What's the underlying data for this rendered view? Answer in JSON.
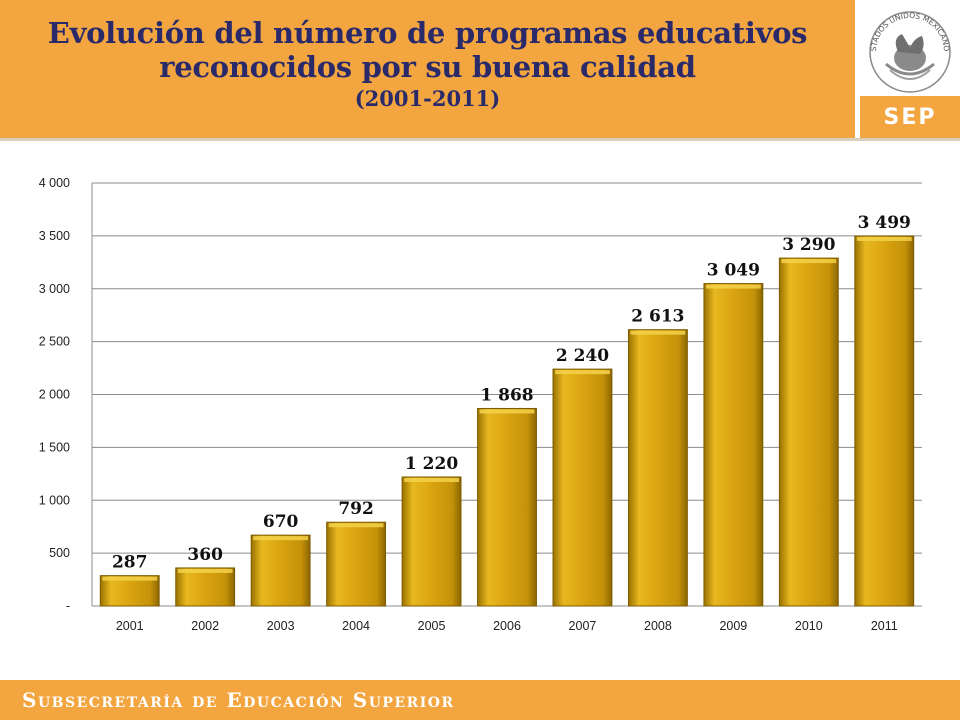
{
  "header": {
    "title_line1": "Evolución del número de programas educativos",
    "title_line2": "reconocidos por su buena calidad",
    "subtitle": "(2001-2011)",
    "seal_text": "ESTADOS UNIDOS MEXICANOS",
    "logo_label": "SEP"
  },
  "footer": {
    "text": "Subsecretaría de Educación Superior"
  },
  "colors": {
    "accent": "#f3a640",
    "title": "#2a2a6a",
    "bar": "#d9a410",
    "bar_edge": "#7a5a00"
  },
  "chart_data": {
    "type": "bar",
    "title": "",
    "xlabel": "",
    "ylabel": "",
    "categories": [
      "2001",
      "2002",
      "2003",
      "2004",
      "2005",
      "2006",
      "2007",
      "2008",
      "2009",
      "2010",
      "2011"
    ],
    "values": [
      287,
      360,
      670,
      792,
      1220,
      1868,
      2240,
      2613,
      3049,
      3290,
      3499
    ],
    "value_labels": [
      "287",
      "360",
      "670",
      "792",
      "1 220",
      "1 868",
      "2 240",
      "2 613",
      "3 049",
      "3 290",
      "3 499"
    ],
    "ylim": [
      0,
      4000
    ],
    "yticks": [
      0,
      500,
      1000,
      1500,
      2000,
      2500,
      3000,
      3500,
      4000
    ],
    "ytick_labels": [
      "-",
      "500",
      "1 000",
      "1 500",
      "2 000",
      "2 500",
      "3 000",
      "3 500",
      "4 000"
    ],
    "grid": true,
    "legend": "none"
  }
}
